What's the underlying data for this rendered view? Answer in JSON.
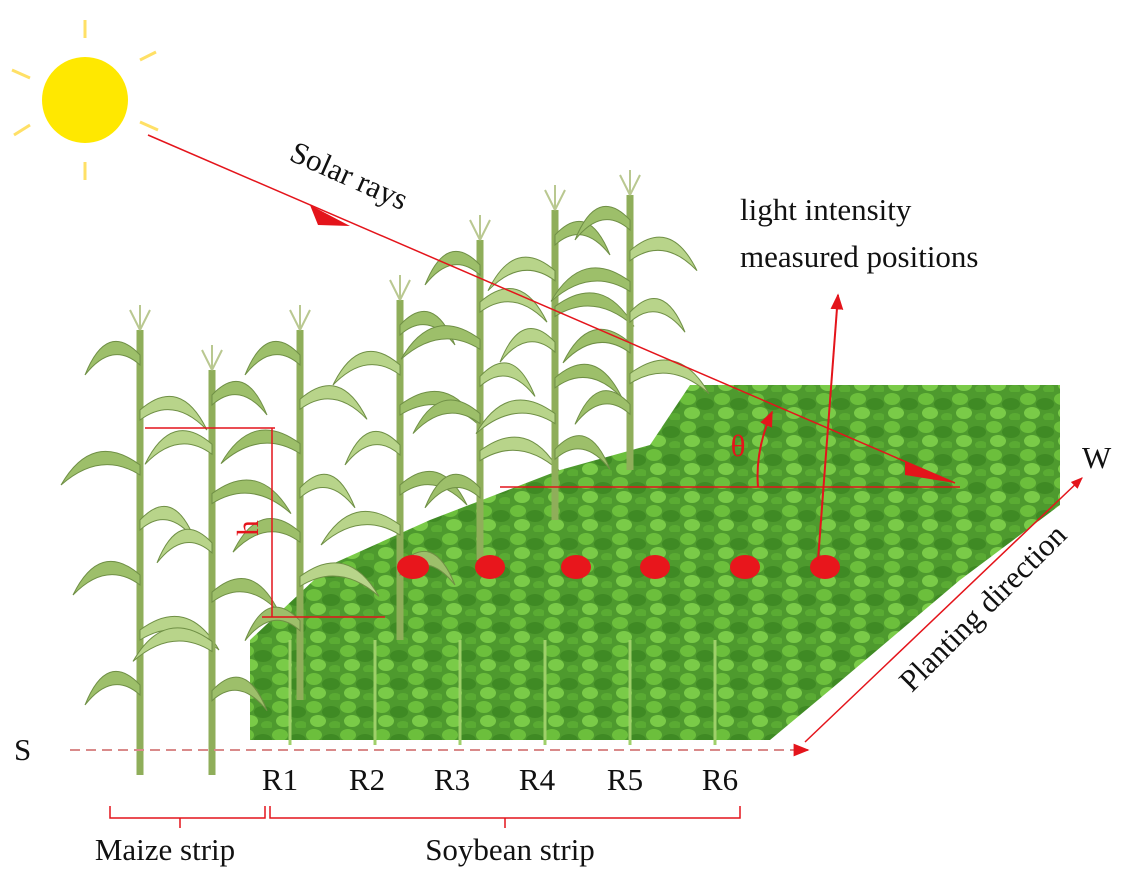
{
  "labels": {
    "solar_rays": "Solar rays",
    "measured_positions": [
      "light intensity",
      "measured positions"
    ],
    "theta": "θ",
    "h": "h",
    "west": "W",
    "south": "S",
    "planting_direction": "Planting direction",
    "rows": [
      "R1",
      "R2",
      "R3",
      "R4",
      "R5",
      "R6"
    ],
    "maize_strip": "Maize strip",
    "soybean_strip": "Soybean strip"
  }
}
